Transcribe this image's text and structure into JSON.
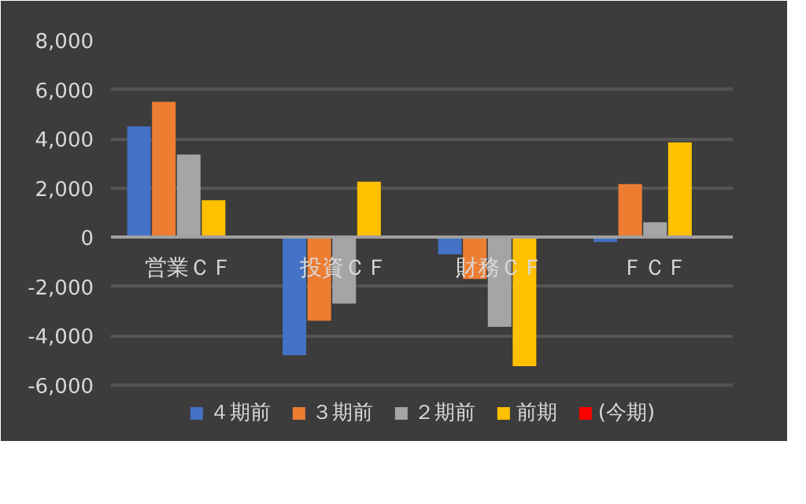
{
  "chart_data": {
    "type": "bar",
    "categories": [
      "営業ＣＦ",
      "投資ＣＦ",
      "財務ＣＦ",
      "ＦＣＦ"
    ],
    "series": [
      {
        "name": "４期前",
        "color": "#4472c4",
        "values": [
          4500,
          -4800,
          -700,
          -200
        ]
      },
      {
        "name": "３期前",
        "color": "#ed7d31",
        "values": [
          5500,
          -3400,
          -1700,
          2150
        ]
      },
      {
        "name": "２期前",
        "color": "#a5a5a5",
        "values": [
          3350,
          -2700,
          -3650,
          600
        ]
      },
      {
        "name": "前期",
        "color": "#ffc000",
        "values": [
          1500,
          2250,
          -5250,
          3850
        ]
      },
      {
        "name": "(今期)",
        "color": "#ff0000",
        "values": [
          null,
          null,
          null,
          null
        ]
      }
    ],
    "ylim": [
      -8000,
      8000
    ],
    "yticks": [
      {
        "value": -6000,
        "label": "-6,000"
      },
      {
        "value": -4000,
        "label": "-4,000"
      },
      {
        "value": -2000,
        "label": "-2,000"
      },
      0,
      {
        "value": 2000,
        "label": "2,000"
      },
      {
        "value": 4000,
        "label": "4,000"
      },
      {
        "value": 6000,
        "label": "6,000"
      },
      {
        "value": 8000,
        "label": "8,000"
      }
    ],
    "grid": "y",
    "legend": "bottom"
  }
}
